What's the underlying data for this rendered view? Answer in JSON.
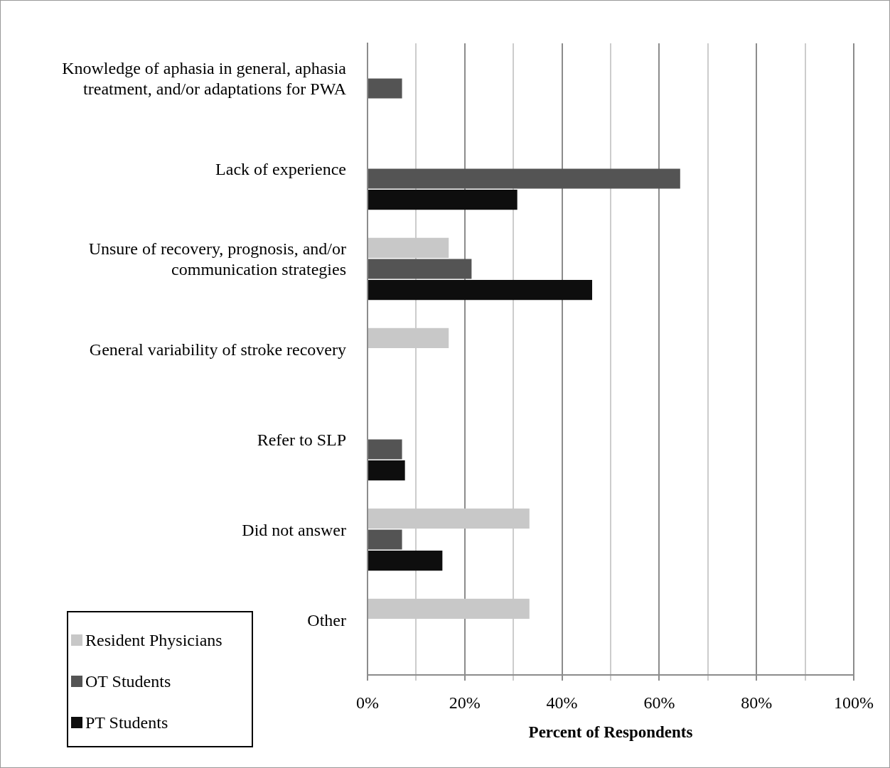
{
  "chart_data": {
    "type": "bar",
    "orientation": "horizontal",
    "xlabel": "Percent of Respondents",
    "categories": [
      "Knowledge of aphasia in general, aphasia treatment, and/or adaptations for PWA",
      "Lack of experience",
      "Unsure of recovery, prognosis, and/or communication strategies",
      "General variability of stroke recovery",
      "Refer to SLP",
      "Did not answer",
      "Other"
    ],
    "series": [
      {
        "name": "Resident Physicians",
        "color": "#c8c8c8",
        "values": [
          null,
          null,
          16.7,
          16.7,
          null,
          33.3,
          33.3
        ]
      },
      {
        "name": "OT Students",
        "color": "#545454",
        "values": [
          7.1,
          64.3,
          21.4,
          null,
          7.1,
          7.1,
          null
        ]
      },
      {
        "name": "PT Students",
        "color": "#0e0e0e",
        "values": [
          null,
          30.8,
          46.2,
          null,
          7.7,
          15.4,
          null
        ]
      }
    ],
    "xlim": [
      0,
      100
    ],
    "xticks": [
      {
        "value": 0,
        "label": "0%"
      },
      {
        "value": 10,
        "label": null
      },
      {
        "value": 20,
        "label": "20%"
      },
      {
        "value": 30,
        "label": null
      },
      {
        "value": 40,
        "label": "40%"
      },
      {
        "value": 50,
        "label": null
      },
      {
        "value": 60,
        "label": "60%"
      },
      {
        "value": 70,
        "label": null
      },
      {
        "value": 80,
        "label": "80%"
      },
      {
        "value": 90,
        "label": null
      },
      {
        "value": 100,
        "label": "100%"
      }
    ],
    "grid": "x",
    "legend": "bottom left"
  }
}
